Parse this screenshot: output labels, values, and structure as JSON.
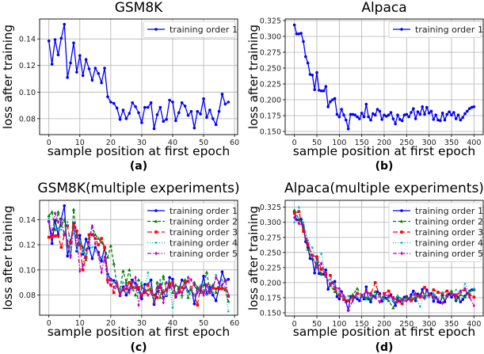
{
  "chart_data": [
    {
      "type": "line",
      "panel_label": "(a)",
      "title": "GSM8K",
      "xlabel": "sample position at first epoch",
      "ylabel": "loss after training",
      "xlim": [
        -3,
        61
      ],
      "ylim": [
        0.068,
        0.155
      ],
      "xticks": [
        0,
        10,
        20,
        30,
        40,
        50,
        60
      ],
      "xtick_labels": [
        "0",
        "10",
        "20",
        "30",
        "40",
        "50",
        "60"
      ],
      "yticks": [
        0.08,
        0.1,
        0.12,
        0.14
      ],
      "ytick_labels": [
        "0.08",
        "0.10",
        "0.12",
        "0.14"
      ],
      "grid": true,
      "legend_position": "top-right",
      "series": [
        {
          "name": "training order  1",
          "color": "#0000ff",
          "x_step": 1,
          "values": [
            0.1385,
            0.121,
            0.1395,
            0.128,
            0.1405,
            0.151,
            0.111,
            0.122,
            0.137,
            0.115,
            0.1275,
            0.1125,
            0.1245,
            0.1175,
            0.109,
            0.118,
            0.114,
            0.107,
            0.118,
            0.0965,
            0.0925,
            0.0915,
            0.088,
            0.0795,
            0.0865,
            0.08,
            0.084,
            0.092,
            0.089,
            0.0845,
            0.077,
            0.0885,
            0.0885,
            0.092,
            0.0725,
            0.083,
            0.0885,
            0.078,
            0.0795,
            0.094,
            0.0925,
            0.0785,
            0.0845,
            0.092,
            0.0895,
            0.0825,
            0.0855,
            0.073,
            0.0855,
            0.0835,
            0.095,
            0.081,
            0.0865,
            0.08,
            0.0755,
            0.0855,
            0.0985,
            0.091,
            0.0925
          ]
        }
      ]
    },
    {
      "type": "line",
      "panel_label": "(b)",
      "title": "Alpaca",
      "xlabel": "sample position at first epoch",
      "ylabel": "loss after training",
      "xlim": [
        -20.6,
        420.6
      ],
      "ylim": [
        0.145,
        0.3275
      ],
      "xticks": [
        0,
        50,
        100,
        150,
        200,
        250,
        300,
        350,
        400
      ],
      "xtick_labels": [
        "0",
        "50",
        "100",
        "150",
        "200",
        "250",
        "300",
        "350",
        "400"
      ],
      "yticks": [
        0.15,
        0.175,
        0.2,
        0.225,
        0.25,
        0.275,
        0.3,
        0.325
      ],
      "ytick_labels": [
        "0.150",
        "0.175",
        "0.200",
        "0.225",
        "0.250",
        "0.275",
        "0.300",
        "0.325"
      ],
      "grid": true,
      "legend_position": "top-right",
      "series": [
        {
          "name": "training order  1",
          "color": "#0000ff",
          "x_step": 5,
          "values": [
            0.318,
            0.304,
            0.304,
            0.305,
            0.292,
            0.268,
            0.258,
            0.24,
            0.239,
            0.216,
            0.243,
            0.215,
            0.214,
            0.214,
            0.221,
            0.189,
            0.197,
            0.2,
            0.202,
            0.177,
            0.173,
            0.185,
            0.176,
            0.168,
            0.154,
            0.177,
            0.177,
            0.176,
            0.173,
            0.17,
            0.179,
            0.173,
            0.193,
            0.173,
            0.168,
            0.178,
            0.176,
            0.185,
            0.182,
            0.169,
            0.176,
            0.174,
            0.176,
            0.18,
            0.17,
            0.162,
            0.176,
            0.169,
            0.167,
            0.176,
            0.177,
            0.173,
            0.18,
            0.186,
            0.17,
            0.181,
            0.177,
            0.189,
            0.177,
            0.188,
            0.179,
            0.182,
            0.169,
            0.176,
            0.168,
            0.167,
            0.179,
            0.168,
            0.177,
            0.181,
            0.176,
            0.18,
            0.17,
            0.176,
            0.168,
            0.172,
            0.178,
            0.182,
            0.186,
            0.188,
            0.189
          ]
        }
      ]
    },
    {
      "type": "line",
      "panel_label": "(c)",
      "title": "GSM8K(multiple experiments)",
      "xlabel": "sample position at first epoch",
      "ylabel": "loss after training",
      "xlim": [
        -3,
        61
      ],
      "ylim": [
        0.064,
        0.1553
      ],
      "xticks": [
        0,
        10,
        20,
        30,
        40,
        50,
        60
      ],
      "xtick_labels": [
        "0",
        "10",
        "20",
        "30",
        "40",
        "50",
        "60"
      ],
      "yticks": [
        0.08,
        0.1,
        0.12,
        0.14
      ],
      "ytick_labels": [
        "0.08",
        "0.10",
        "0.12",
        "0.14"
      ],
      "grid": true,
      "legend_position": "top-right",
      "series": [
        {
          "name": "training order  1",
          "color": "#0000ff",
          "x_step": 1,
          "values": [
            0.1385,
            0.121,
            0.1395,
            0.128,
            0.1405,
            0.151,
            0.111,
            0.122,
            0.137,
            0.115,
            0.1275,
            0.1125,
            0.1245,
            0.1175,
            0.109,
            0.118,
            0.114,
            0.107,
            0.118,
            0.0965,
            0.0925,
            0.0915,
            0.088,
            0.0795,
            0.0865,
            0.08,
            0.084,
            0.092,
            0.089,
            0.0845,
            0.077,
            0.0885,
            0.0885,
            0.092,
            0.0725,
            0.083,
            0.0885,
            0.078,
            0.0795,
            0.094,
            0.0925,
            0.0785,
            0.0845,
            0.092,
            0.0895,
            0.0825,
            0.0855,
            0.073,
            0.0855,
            0.0835,
            0.095,
            0.081,
            0.0865,
            0.08,
            0.0755,
            0.0855,
            0.0985,
            0.091,
            0.0925
          ]
        },
        {
          "name": "training order  2",
          "color": "#008000",
          "x_step": 1,
          "values": [
            0.143,
            0.146,
            0.132,
            0.146,
            0.135,
            0.14,
            0.12,
            0.112,
            0.148,
            0.128,
            0.122,
            0.118,
            0.108,
            0.125,
            0.134,
            0.128,
            0.125,
            0.122,
            0.118,
            0.11,
            0.119,
            0.105,
            0.088,
            0.085,
            0.099,
            0.09,
            0.1,
            0.086,
            0.08,
            0.092,
            0.088,
            0.082,
            0.084,
            0.086,
            0.074,
            0.09,
            0.078,
            0.095,
            0.084,
            0.09,
            0.082,
            0.088,
            0.086,
            0.08,
            0.092,
            0.078,
            0.084,
            0.09,
            0.086,
            0.082,
            0.088,
            0.098,
            0.084,
            0.088,
            0.082,
            0.09,
            0.086,
            0.084,
            0.075
          ]
        },
        {
          "name": "training order  3",
          "color": "#ff0000",
          "x_step": 1,
          "values": [
            0.126,
            0.126,
            0.127,
            0.127,
            0.118,
            0.128,
            0.135,
            0.122,
            0.136,
            0.131,
            0.12,
            0.1,
            0.11,
            0.128,
            0.128,
            0.125,
            0.12,
            0.125,
            0.118,
            0.092,
            0.088,
            0.082,
            0.088,
            0.082,
            0.084,
            0.085,
            0.09,
            0.086,
            0.086,
            0.086,
            0.08,
            0.082,
            0.088,
            0.084,
            0.08,
            0.078,
            0.086,
            0.082,
            0.084,
            0.088,
            0.09,
            0.08,
            0.082,
            0.086,
            0.09,
            0.091,
            0.086,
            0.08,
            0.072,
            0.086,
            0.082,
            0.088,
            0.082,
            0.086,
            0.085,
            0.085,
            0.085,
            0.085,
            0.079
          ]
        },
        {
          "name": "training order  4",
          "color": "#00bfbf",
          "x_step": 1,
          "values": [
            0.141,
            0.132,
            0.135,
            0.133,
            0.132,
            0.13,
            0.138,
            0.11,
            0.134,
            0.116,
            0.123,
            0.114,
            0.112,
            0.12,
            0.118,
            0.115,
            0.112,
            0.11,
            0.108,
            0.095,
            0.092,
            0.09,
            0.088,
            0.084,
            0.09,
            0.082,
            0.086,
            0.084,
            0.088,
            0.082,
            0.09,
            0.084,
            0.098,
            0.086,
            0.076,
            0.084,
            0.092,
            0.084,
            0.08,
            0.086,
            0.07,
            0.082,
            0.084,
            0.078,
            0.088,
            0.082,
            0.086,
            0.08,
            0.082,
            0.088,
            0.084,
            0.08,
            0.088,
            0.082,
            0.096,
            0.09,
            0.092,
            0.086,
            0.067
          ]
        },
        {
          "name": "training order  5",
          "color": "#bf00bf",
          "x_step": 1,
          "values": [
            0.138,
            0.128,
            0.145,
            0.138,
            0.14,
            0.128,
            0.123,
            0.11,
            0.134,
            0.126,
            0.099,
            0.104,
            0.116,
            0.122,
            0.135,
            0.121,
            0.112,
            0.098,
            0.11,
            0.09,
            0.092,
            0.086,
            0.09,
            0.08,
            0.085,
            0.088,
            0.082,
            0.09,
            0.094,
            0.072,
            0.086,
            0.084,
            0.08,
            0.082,
            0.074,
            0.086,
            0.088,
            0.074,
            0.09,
            0.086,
            0.088,
            0.08,
            0.084,
            0.082,
            0.086,
            0.094,
            0.092,
            0.088,
            0.082,
            0.086,
            0.08,
            0.088,
            0.082,
            0.086,
            0.094,
            0.09,
            0.088,
            0.092,
            0.08
          ]
        }
      ]
    },
    {
      "type": "line",
      "panel_label": "(d)",
      "title": "Alpaca(multiple experiments)",
      "xlabel": "sample position at first epoch",
      "ylabel": "loss after training",
      "xlim": [
        -20.6,
        420.6
      ],
      "ylim": [
        0.1447,
        0.3364
      ],
      "xticks": [
        0,
        50,
        100,
        150,
        200,
        250,
        300,
        350,
        400
      ],
      "xtick_labels": [
        "0",
        "50",
        "100",
        "150",
        "200",
        "250",
        "300",
        "350",
        "400"
      ],
      "yticks": [
        0.15,
        0.175,
        0.2,
        0.225,
        0.25,
        0.275,
        0.3,
        0.325
      ],
      "ytick_labels": [
        "0.150",
        "0.175",
        "0.200",
        "0.225",
        "0.250",
        "0.275",
        "0.300",
        "0.325"
      ],
      "grid": true,
      "legend_position": "top-right",
      "series": [
        {
          "name": "training order  1",
          "color": "#0000ff",
          "x_step": 5,
          "values": [
            0.318,
            0.304,
            0.304,
            0.305,
            0.292,
            0.268,
            0.258,
            0.24,
            0.239,
            0.216,
            0.243,
            0.215,
            0.214,
            0.214,
            0.221,
            0.189,
            0.197,
            0.2,
            0.202,
            0.177,
            0.173,
            0.185,
            0.176,
            0.168,
            0.154,
            0.177,
            0.177,
            0.176,
            0.173,
            0.17,
            0.179,
            0.173,
            0.193,
            0.173,
            0.168,
            0.178,
            0.176,
            0.185,
            0.182,
            0.169,
            0.176,
            0.174,
            0.176,
            0.18,
            0.17,
            0.162,
            0.176,
            0.169,
            0.167,
            0.176,
            0.177,
            0.173,
            0.18,
            0.186,
            0.17,
            0.181,
            0.177,
            0.189,
            0.177,
            0.188,
            0.179,
            0.182,
            0.169,
            0.176,
            0.168,
            0.167,
            0.179,
            0.168,
            0.177,
            0.181,
            0.176,
            0.18,
            0.17,
            0.176,
            0.168,
            0.172,
            0.178,
            0.182,
            0.186,
            0.188,
            0.189
          ]
        },
        {
          "name": "training order  2",
          "color": "#008000",
          "x_step": 10,
          "values": [
            0.32,
            0.305,
            0.29,
            0.255,
            0.24,
            0.23,
            0.215,
            0.21,
            0.195,
            0.185,
            0.18,
            0.175,
            0.17,
            0.18,
            0.19,
            0.178,
            0.175,
            0.172,
            0.185,
            0.178,
            0.175,
            0.17,
            0.158,
            0.178,
            0.172,
            0.176,
            0.17,
            0.174,
            0.18,
            0.176,
            0.182,
            0.178,
            0.184,
            0.176,
            0.18,
            0.186,
            0.172,
            0.18,
            0.176,
            0.186,
            0.188
          ]
        },
        {
          "name": "training order  3",
          "color": "#ff0000",
          "x_step": 10,
          "values": [
            0.315,
            0.318,
            0.285,
            0.262,
            0.245,
            0.242,
            0.222,
            0.215,
            0.212,
            0.19,
            0.18,
            0.172,
            0.17,
            0.175,
            0.182,
            0.178,
            0.185,
            0.18,
            0.2,
            0.178,
            0.182,
            0.186,
            0.175,
            0.17,
            0.165,
            0.172,
            0.17,
            0.178,
            0.176,
            0.192,
            0.18,
            0.188,
            0.184,
            0.182,
            0.186,
            0.18,
            0.178,
            0.184,
            0.188,
            0.18,
            0.176
          ]
        },
        {
          "name": "training order  4",
          "color": "#00bfbf",
          "x_step": 10,
          "values": [
            0.3,
            0.325,
            0.3,
            0.27,
            0.258,
            0.235,
            0.248,
            0.21,
            0.205,
            0.198,
            0.185,
            0.175,
            0.178,
            0.172,
            0.176,
            0.178,
            0.172,
            0.176,
            0.18,
            0.178,
            0.172,
            0.176,
            0.17,
            0.178,
            0.168,
            0.172,
            0.174,
            0.178,
            0.16,
            0.18,
            0.176,
            0.182,
            0.172,
            0.184,
            0.176,
            0.18,
            0.188,
            0.182,
            0.198,
            0.184,
            0.19
          ]
        },
        {
          "name": "training order  5",
          "color": "#bf00bf",
          "x_step": 10,
          "values": [
            0.308,
            0.298,
            0.295,
            0.265,
            0.245,
            0.225,
            0.232,
            0.212,
            0.198,
            0.192,
            0.19,
            0.178,
            0.155,
            0.17,
            0.182,
            0.178,
            0.185,
            0.182,
            0.175,
            0.168,
            0.18,
            0.178,
            0.175,
            0.168,
            0.172,
            0.17,
            0.176,
            0.182,
            0.178,
            0.174,
            0.18,
            0.176,
            0.172,
            0.166,
            0.178,
            0.182,
            0.18,
            0.186,
            0.19,
            0.176,
            0.162
          ]
        }
      ]
    }
  ]
}
